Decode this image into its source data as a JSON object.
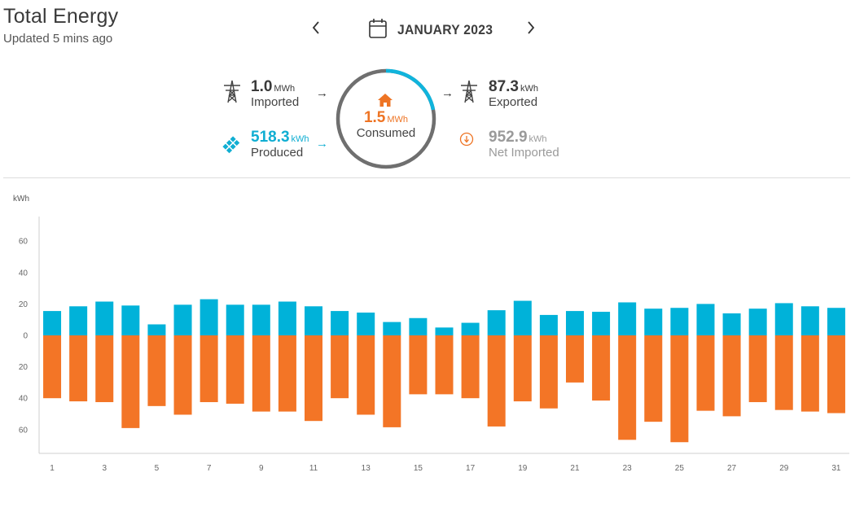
{
  "header": {
    "title": "Total Energy",
    "updated": "Updated 5 mins ago"
  },
  "period": {
    "label": "JANUARY 2023",
    "prev_icon": "chevron-left-icon",
    "next_icon": "chevron-right-icon",
    "calendar_icon": "calendar-icon"
  },
  "summary": {
    "imported": {
      "value": "1.0",
      "unit": "MWh",
      "label": "Imported",
      "icon": "transmission-tower-icon"
    },
    "produced": {
      "value": "518.3",
      "unit": "kWh",
      "label": "Produced",
      "icon": "solar-panel-icon"
    },
    "consumed": {
      "value": "1.5",
      "unit": "MWh",
      "label": "Consumed",
      "icon": "home-icon",
      "ring_fraction": 0.22
    },
    "exported": {
      "value": "87.3",
      "unit": "kWh",
      "label": "Exported",
      "icon": "transmission-tower-icon"
    },
    "net": {
      "value": "952.9",
      "unit": "kWh",
      "label": "Net Imported",
      "icon": "net-import-icon"
    }
  },
  "colors": {
    "produced": "#00b2d9",
    "consumed": "#f37526",
    "text": "#3a3a3a",
    "muted": "#9a9a9a"
  },
  "chart_data": {
    "type": "bar",
    "ylabel": "kWh",
    "ylim": [
      -75,
      75
    ],
    "yticks": [
      60,
      40,
      20,
      0,
      -20,
      -40,
      -60
    ],
    "ytick_labels": [
      "60",
      "40",
      "20",
      "0",
      "20",
      "40",
      "60"
    ],
    "xtick_labels": [
      "1",
      "3",
      "5",
      "7",
      "9",
      "11",
      "13",
      "15",
      "17",
      "19",
      "21",
      "23",
      "25",
      "27",
      "29",
      "31"
    ],
    "x": [
      1,
      2,
      3,
      4,
      5,
      6,
      7,
      8,
      9,
      10,
      11,
      12,
      13,
      14,
      15,
      16,
      17,
      18,
      19,
      20,
      21,
      22,
      23,
      24,
      25,
      26,
      27,
      28,
      29,
      30,
      31
    ],
    "series": [
      {
        "name": "Produced",
        "color": "#00b2d9",
        "values": [
          15.5,
          18.5,
          21.5,
          19,
          7,
          19.5,
          23,
          19.5,
          19.5,
          21.5,
          18.5,
          15.5,
          14.5,
          8.5,
          11,
          5,
          8,
          16,
          22,
          13,
          15.5,
          15,
          21,
          17,
          17.5,
          20,
          14,
          17,
          20.5,
          18.5,
          17.5
        ]
      },
      {
        "name": "Consumed",
        "color": "#f37526",
        "values": [
          -40,
          -42,
          -42.5,
          -59,
          -45,
          -50.5,
          -42.5,
          -43.5,
          -48.5,
          -48.5,
          -54.5,
          -40,
          -50.5,
          -58.5,
          -37.5,
          -37.5,
          -40,
          -58,
          -42,
          -46.5,
          -30,
          -41.5,
          -66.5,
          -55,
          -68,
          -48,
          -51.5,
          -42.5,
          -47.5,
          -48.5,
          -49.5
        ]
      }
    ]
  }
}
